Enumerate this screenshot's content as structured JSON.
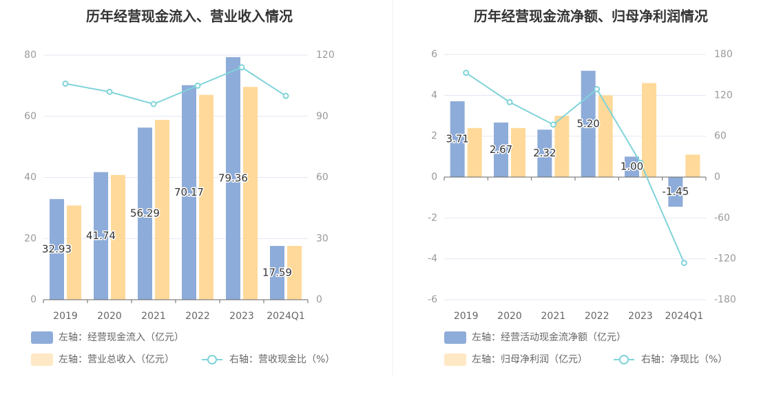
{
  "colors": {
    "bar_primary": "#8eacd9",
    "bar_secondary": "#ffd99a",
    "legend_secondary": "#ffe8c5",
    "line": "#7fd3d9",
    "grid": "#e4e7f2",
    "axis": "#666666",
    "divider": "#eeeeee"
  },
  "chart_data": [
    {
      "type": "bar",
      "title": "历年经营现金流入、营业收入情况",
      "categories": [
        "2019",
        "2020",
        "2021",
        "2022",
        "2023",
        "2024Q1"
      ],
      "left_ticks": [
        "0",
        "20",
        "40",
        "60",
        "80"
      ],
      "right_ticks": [
        "0",
        "30",
        "60",
        "90",
        "120"
      ],
      "ylim_left": [
        0,
        80
      ],
      "ylim_right": [
        0,
        120
      ],
      "series": [
        {
          "name": "左轴：经营现金流入（亿元）",
          "kind": "bar",
          "axis": "left",
          "values": [
            32.93,
            41.74,
            56.29,
            70.17,
            79.36,
            17.59
          ],
          "labels": [
            "32.93",
            "41.74",
            "56.29",
            "70.17",
            "79.36",
            "17.59"
          ]
        },
        {
          "name": "左轴：营业总收入（亿元）",
          "kind": "bar",
          "axis": "left",
          "values": [
            30.8,
            40.8,
            58.8,
            67.0,
            69.6,
            17.6
          ]
        },
        {
          "name": "右轴：营收现金比（%）",
          "kind": "line",
          "axis": "right",
          "values": [
            106.0,
            102.0,
            96.0,
            105.0,
            114.0,
            100.0
          ]
        }
      ],
      "grid": true,
      "legend_position": "bottom"
    },
    {
      "type": "bar",
      "title": "历年经营现金流净额、归母净利润情况",
      "categories": [
        "2019",
        "2020",
        "2021",
        "2022",
        "2023",
        "2024Q1"
      ],
      "left_ticks": [
        "-6",
        "-4",
        "-2",
        "0",
        "2",
        "4",
        "6"
      ],
      "right_ticks": [
        "-180",
        "-120",
        "-60",
        "0",
        "60",
        "120",
        "180"
      ],
      "ylim_left": [
        -6,
        6
      ],
      "ylim_right": [
        -180,
        180
      ],
      "series": [
        {
          "name": "左轴：经营活动现金流净额（亿元）",
          "kind": "bar",
          "axis": "left",
          "values": [
            3.71,
            2.67,
            2.32,
            5.2,
            1.0,
            -1.45
          ],
          "labels": [
            "3.71",
            "2.67",
            "2.32",
            "5.20",
            "1.00",
            "-1.45"
          ]
        },
        {
          "name": "左轴：归母净利润（亿元）",
          "kind": "bar",
          "axis": "left",
          "values": [
            2.4,
            2.4,
            3.0,
            4.0,
            4.6,
            1.1
          ]
        },
        {
          "name": "右轴：净现比（%）",
          "kind": "line",
          "axis": "right",
          "values": [
            153.0,
            110.0,
            77.0,
            129.0,
            21.0,
            -126.0
          ]
        }
      ],
      "grid": true,
      "legend_position": "bottom"
    }
  ]
}
